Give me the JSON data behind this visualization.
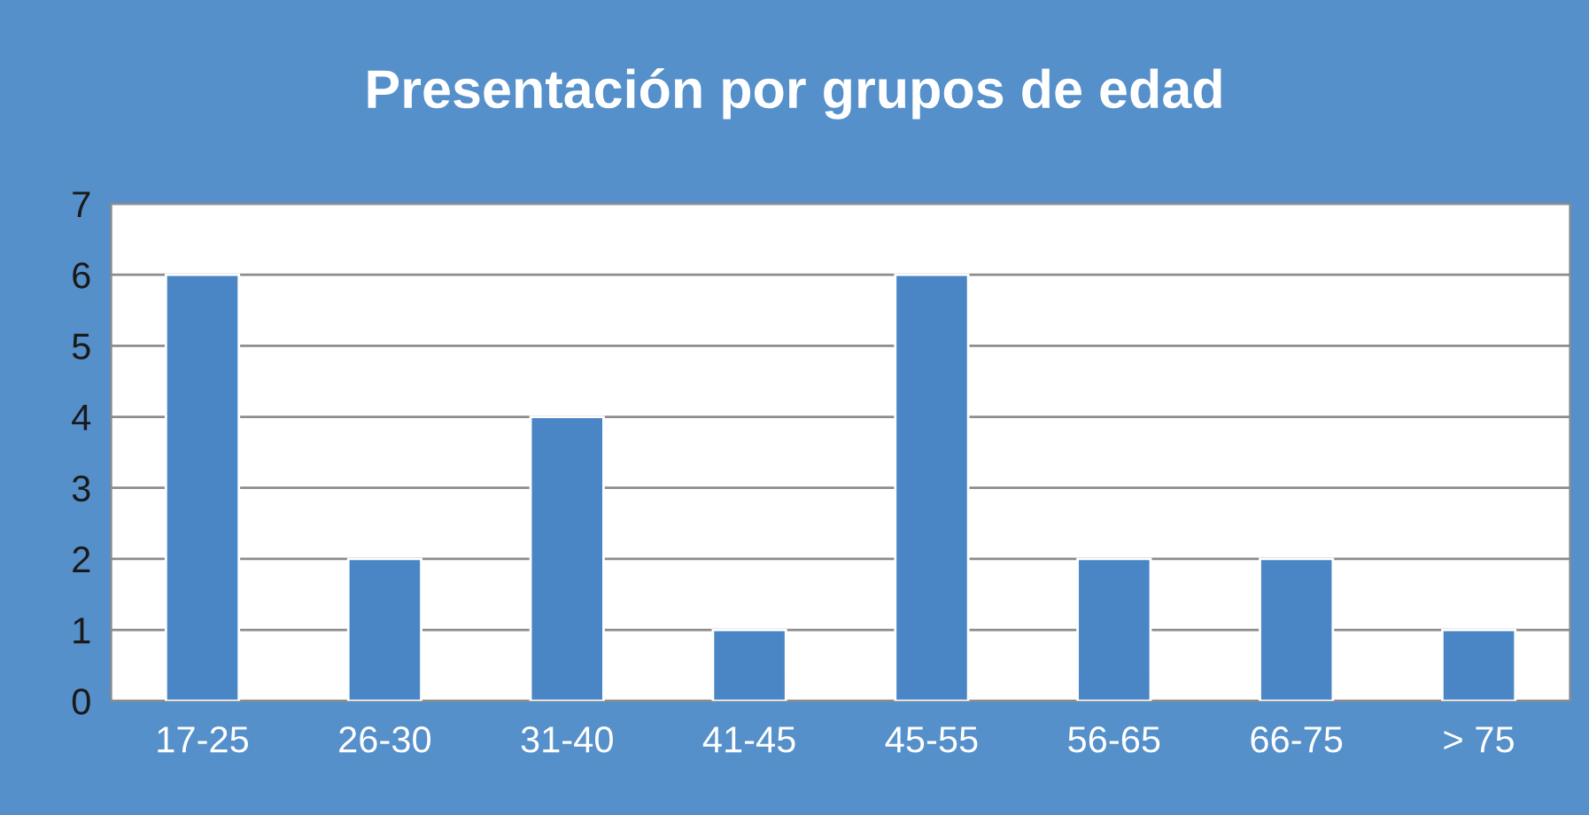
{
  "chart_data": {
    "type": "bar",
    "title": "Presentación por grupos de edad",
    "categories": [
      "17-25",
      "26-30",
      "31-40",
      "41-45",
      "45-55",
      "56-65",
      "66-75",
      "> 75"
    ],
    "values": [
      6,
      2,
      4,
      1,
      6,
      2,
      2,
      1
    ],
    "color": "#4a86c5",
    "ylim": [
      0,
      7
    ],
    "yticks": [
      0,
      1,
      2,
      3,
      4,
      5,
      6,
      7
    ],
    "grid": "y",
    "legend": false
  }
}
